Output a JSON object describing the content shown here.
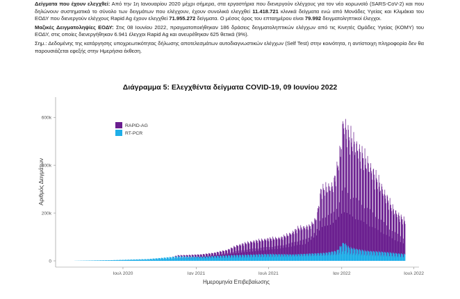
{
  "document": {
    "p1_label": "Δείγματα που έχουν ελεγχθεί:",
    "p1_a": " Από την 1η Ιανουαρίου 2020 μέχρι σήμερα, στα εργαστήρια που διενεργούν ελέγχους για τον νέο κορωνοϊό (SARS-CoV-2) και που δηλώνουν συστηματικά το σύνολο των δειγμάτων που ελέγχουν, έχουν συνολικά ελεγχθεί ",
    "p1_b": "11.418.721",
    "p1_c": " κλινικά δείγματα ενώ από Μονάδες Υγείας και Κλιμάκια του ΕΟΔΥ που διενεργούν ελέγχους Rapid Ag έχουν ελεγχθεί ",
    "p1_d": "71.955.272",
    "p1_e": " δείγματα.  Ο μέσος όρος του επταημέρου είναι ",
    "p1_f": "79.992",
    "p1_g": " δειγματοληπτικοί έλεγχοι.",
    "p2_label": "Μαζικές Δειγματοληψίες ΕΟΔΥ:",
    "p2_text": " Στις 08 Ιουνίου 2022, πραγματοποιήθηκαν 186 δράσεις δειγματοληπτικών ελέγχων από τις Κινητές Ομάδες Υγείας (ΚΟΜΥ) του ΕΟΔΥ, στις οποίες διενεργήθηκαν 6.941 έλεγχοι Rapid Ag και ανευρέθηκαν 625 θετικά (9%).",
    "p3_label": "Σημ.:",
    "p3_text": " Δεδομένης της κατάργησης υποχρεωτικότητας δήλωσης αποτελεσμάτων αυτοδιαγνωστικών ελέγχων (Self Test) στην κοινότητα, η αντίστοιχη πληροφορία δεν θα παρουσιάζεται εφεξής στην Ημερήσια έκθεση."
  },
  "chart_data": {
    "type": "bar",
    "title": "Διάγραμμα 5: Ελεγχθέντα δείγματα COVID-19, 09 Ιουνίου 2022",
    "xlabel": "Ημερομηνία Επιβεβαίωσης",
    "ylabel": "Αριθμός Δειγμάτων",
    "x_tick_labels": [
      "Ιουλ 2020",
      "Ιαν 2021",
      "Ιουλ 2021",
      "Ιαν 2022",
      "Ιουλ 2022"
    ],
    "x_tick_dates": [
      "2020-07-01",
      "2021-01-01",
      "2021-07-01",
      "2022-01-01",
      "2022-07-01"
    ],
    "x_range": [
      "2020-03-01",
      "2022-06-09"
    ],
    "y_tick_labels": [
      "0",
      "200k",
      "400k",
      "600k"
    ],
    "y_tick_values": [
      0,
      200000,
      400000,
      600000
    ],
    "ylim": [
      0,
      650000
    ],
    "legend_position": "top-left",
    "stacked": true,
    "series": [
      {
        "name": "RAPID-AG",
        "color": "#6a1e8f",
        "peaks": [
          {
            "date": "2020-03-01",
            "value": 0
          },
          {
            "date": "2020-11-01",
            "value": 0
          },
          {
            "date": "2020-11-15",
            "value": 5000
          },
          {
            "date": "2020-12-20",
            "value": 8000
          },
          {
            "date": "2021-02-15",
            "value": 15000
          },
          {
            "date": "2021-03-20",
            "value": 25000
          },
          {
            "date": "2021-04-15",
            "value": 45000
          },
          {
            "date": "2021-05-20",
            "value": 60000
          },
          {
            "date": "2021-07-01",
            "value": 70000
          },
          {
            "date": "2021-08-01",
            "value": 75000
          },
          {
            "date": "2021-08-25",
            "value": 95000
          },
          {
            "date": "2021-09-15",
            "value": 120000
          },
          {
            "date": "2021-10-15",
            "value": 125000
          },
          {
            "date": "2021-10-30",
            "value": 160000
          },
          {
            "date": "2021-11-10",
            "value": 290000
          },
          {
            "date": "2021-12-10",
            "value": 300000
          },
          {
            "date": "2021-12-28",
            "value": 430000
          },
          {
            "date": "2022-01-05",
            "value": 560000
          },
          {
            "date": "2022-01-18",
            "value": 520000
          },
          {
            "date": "2022-02-10",
            "value": 470000
          },
          {
            "date": "2022-03-10",
            "value": 400000
          },
          {
            "date": "2022-04-10",
            "value": 300000
          },
          {
            "date": "2022-05-10",
            "value": 200000
          },
          {
            "date": "2022-06-09",
            "value": 150000
          }
        ],
        "troughs": [
          {
            "date": "2020-03-01",
            "value": 0
          },
          {
            "date": "2020-11-01",
            "value": 0
          },
          {
            "date": "2021-01-01",
            "value": 3000
          },
          {
            "date": "2021-04-01",
            "value": 15000
          },
          {
            "date": "2021-07-01",
            "value": 25000
          },
          {
            "date": "2021-10-01",
            "value": 40000
          },
          {
            "date": "2021-11-10",
            "value": 90000
          },
          {
            "date": "2022-01-01",
            "value": 120000
          },
          {
            "date": "2022-03-01",
            "value": 90000
          },
          {
            "date": "2022-06-09",
            "value": 40000
          }
        ]
      },
      {
        "name": "RT-PCR",
        "color": "#1eaee8",
        "peaks": [
          {
            "date": "2020-03-01",
            "value": 300
          },
          {
            "date": "2020-06-01",
            "value": 3000
          },
          {
            "date": "2020-09-01",
            "value": 8000
          },
          {
            "date": "2020-11-15",
            "value": 20000
          },
          {
            "date": "2021-01-15",
            "value": 18000
          },
          {
            "date": "2021-04-01",
            "value": 25000
          },
          {
            "date": "2021-07-01",
            "value": 30000
          },
          {
            "date": "2021-09-01",
            "value": 28000
          },
          {
            "date": "2021-11-20",
            "value": 35000
          },
          {
            "date": "2021-12-20",
            "value": 45000
          },
          {
            "date": "2022-01-06",
            "value": 85000
          },
          {
            "date": "2022-01-20",
            "value": 60000
          },
          {
            "date": "2022-03-01",
            "value": 45000
          },
          {
            "date": "2022-04-15",
            "value": 40000
          },
          {
            "date": "2022-06-09",
            "value": 30000
          }
        ],
        "troughs": [
          {
            "date": "2020-03-01",
            "value": 100
          },
          {
            "date": "2020-09-01",
            "value": 3000
          },
          {
            "date": "2021-01-01",
            "value": 8000
          },
          {
            "date": "2021-07-01",
            "value": 12000
          },
          {
            "date": "2022-01-01",
            "value": 20000
          },
          {
            "date": "2022-06-09",
            "value": 10000
          }
        ]
      }
    ]
  }
}
